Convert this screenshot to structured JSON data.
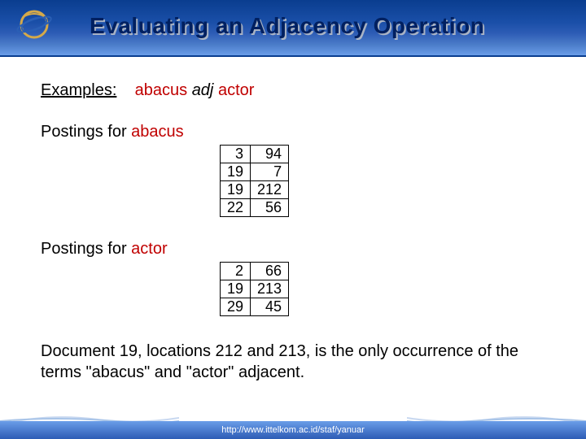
{
  "title": "Evaluating an Adjacency Operation",
  "examples": {
    "label": "Examples:",
    "word1": "abacus",
    "op": "adj",
    "word2": "actor"
  },
  "postings1": {
    "label": "Postings for ",
    "term": "abacus",
    "rows": [
      [
        "3",
        "94"
      ],
      [
        "19",
        "7"
      ],
      [
        "19",
        "212"
      ],
      [
        "22",
        "56"
      ]
    ]
  },
  "postings2": {
    "label": "Postings for ",
    "term": "actor",
    "rows": [
      [
        "2",
        "66"
      ],
      [
        "19",
        "213"
      ],
      [
        "29",
        "45"
      ]
    ]
  },
  "conclusion": "Document 19, locations 212 and 213, is the only occurrence of the terms \"abacus\" and \"actor\" adjacent.",
  "footer": "http://www.ittelkom.ac.id/staf/yanuar",
  "colors": {
    "term": "#c00000",
    "title": "#002060",
    "header_gradient_top": "#0a3d8f",
    "header_gradient_bottom": "#6a9de8"
  }
}
